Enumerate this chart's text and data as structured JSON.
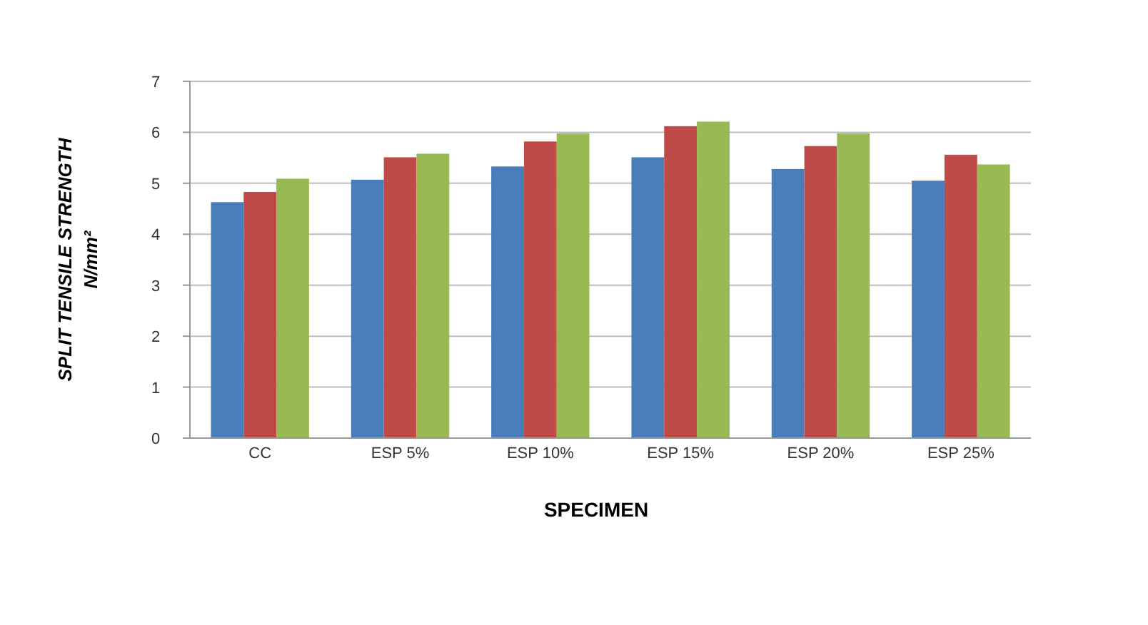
{
  "chart_data": {
    "type": "bar",
    "xlabel": "SPECIMEN",
    "ylabel": "SPLIT TENSILE STRENGTH\nN/mm²",
    "categories": [
      "CC",
      "ESP 5%",
      "ESP 10%",
      "ESP 15%",
      "ESP 20%",
      "ESP 25%"
    ],
    "series": [
      {
        "color": "#4a7ebb",
        "values": [
          4.63,
          5.07,
          5.33,
          5.51,
          5.28,
          5.05
        ]
      },
      {
        "color": "#be4b48",
        "values": [
          4.83,
          5.51,
          5.82,
          6.12,
          5.73,
          5.56
        ]
      },
      {
        "color": "#98b954",
        "values": [
          5.09,
          5.58,
          5.98,
          6.21,
          5.98,
          5.37
        ]
      }
    ],
    "ylim": [
      0,
      7
    ],
    "yticks": [
      0,
      1,
      2,
      3,
      4,
      5,
      6,
      7
    ],
    "grid": "y",
    "legend": false
  }
}
